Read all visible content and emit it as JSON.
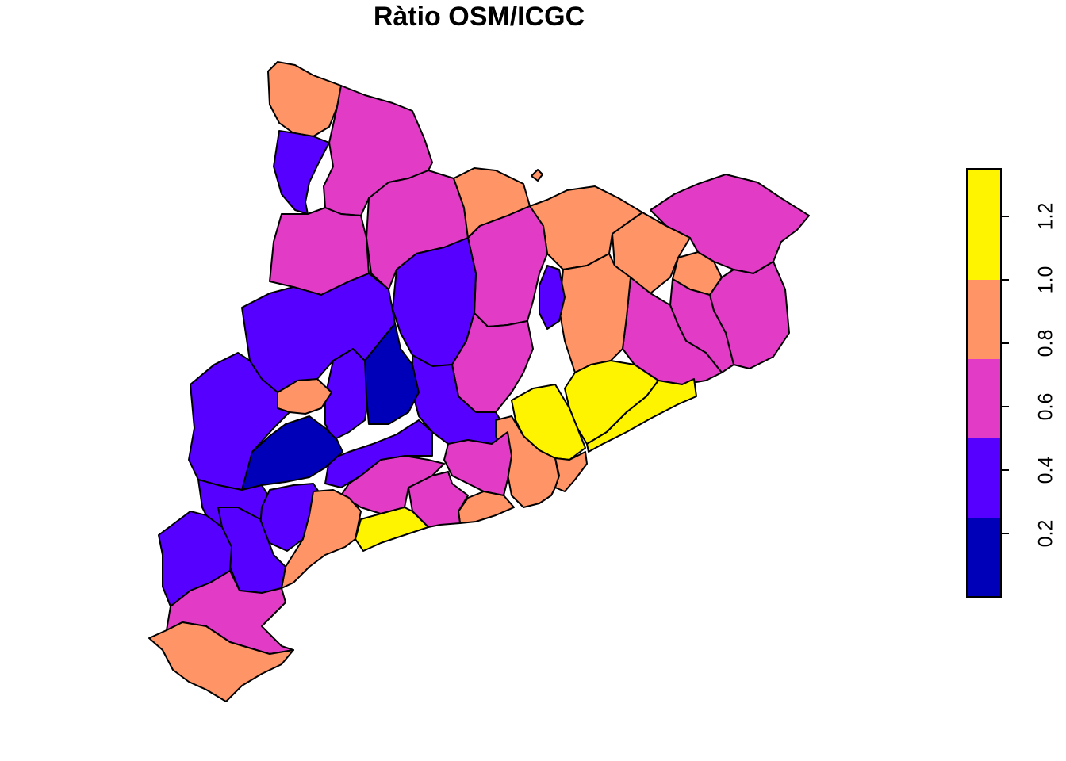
{
  "title": "Ràtio OSM/ICGC",
  "legend": {
    "breaks": [
      0.0,
      0.2,
      0.4,
      0.6,
      0.8,
      1.0,
      1.2,
      1.4
    ],
    "bins": [
      {
        "from": 0.0,
        "to": 0.25,
        "color": "#0000b8"
      },
      {
        "from": 0.25,
        "to": 0.5,
        "color": "#5600ff"
      },
      {
        "from": 0.5,
        "to": 0.75,
        "color": "#e23bc6"
      },
      {
        "from": 0.75,
        "to": 1.0,
        "color": "#ff9466"
      },
      {
        "from": 1.0,
        "to": 1.35,
        "color": "#fff400"
      }
    ],
    "ticks": [
      "0.2",
      "0.4",
      "0.6",
      "0.8",
      "1.0",
      "1.2"
    ]
  },
  "colors": {
    "dark_blue": "#0000b8",
    "blue": "#5600ff",
    "magenta": "#e23bc6",
    "orange": "#ff9466",
    "yellow": "#fff400"
  }
}
